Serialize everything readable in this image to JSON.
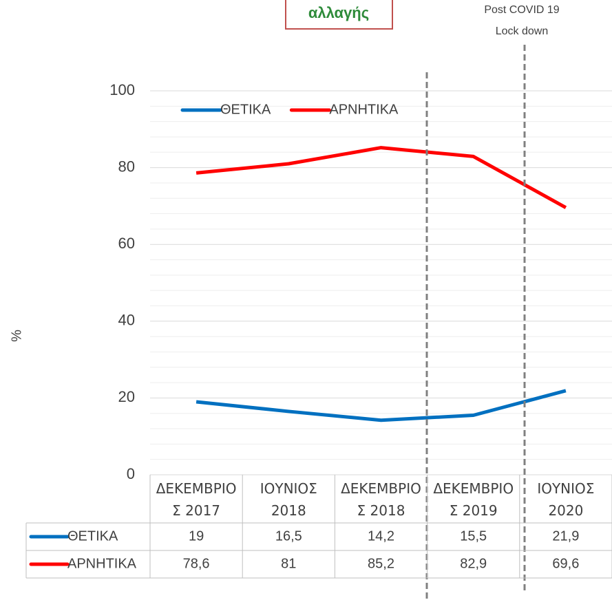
{
  "logo_text": "αλλαγής",
  "chart_data": {
    "type": "line",
    "y_label": "%",
    "annotations": [
      "Post  COVID 19",
      "Lock down"
    ],
    "categories": [
      "ΔΕΚΕΜΒΡΙΟΣ 2017",
      "ΙΟΥΝΙΟΣ 2018",
      "ΔΕΚΕΜΒΡΙΟΣ 2018",
      "ΔΕΚΕΜΒΡΙΟΣ 2019",
      "ΙΟΥΝΙΟΣ 2020"
    ],
    "series": [
      {
        "name": "ΘΕΤΙΚΑ",
        "color": "#0070c0",
        "values": [
          19,
          16.5,
          14.2,
          15.5,
          21.9
        ],
        "value_labels": [
          "19",
          "16,5",
          "14,2",
          "15,5",
          "21,9"
        ]
      },
      {
        "name": "ΑΡΝΗΤΙΚΑ",
        "color": "#ff0000",
        "values": [
          78.6,
          81,
          85.2,
          82.9,
          69.6
        ],
        "value_labels": [
          "78,6",
          "81",
          "85,2",
          "82,9",
          "69,6"
        ]
      }
    ],
    "ylim": [
      0,
      100
    ],
    "yticks": [
      0,
      20,
      40,
      60,
      80,
      100
    ],
    "grid": true,
    "legend": "top-left",
    "data_table": true
  }
}
